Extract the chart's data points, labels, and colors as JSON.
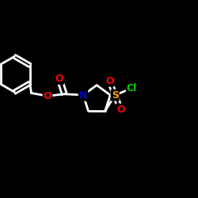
{
  "bg_color": "#000000",
  "line_color": "#ffffff",
  "atom_colors": {
    "O": "#ff0000",
    "N": "#0000cd",
    "S": "#ffa500",
    "Cl": "#00cc00"
  },
  "line_width": 2.0,
  "figsize": [
    2.5,
    2.5
  ],
  "dpi": 100,
  "font_size": 9.0
}
